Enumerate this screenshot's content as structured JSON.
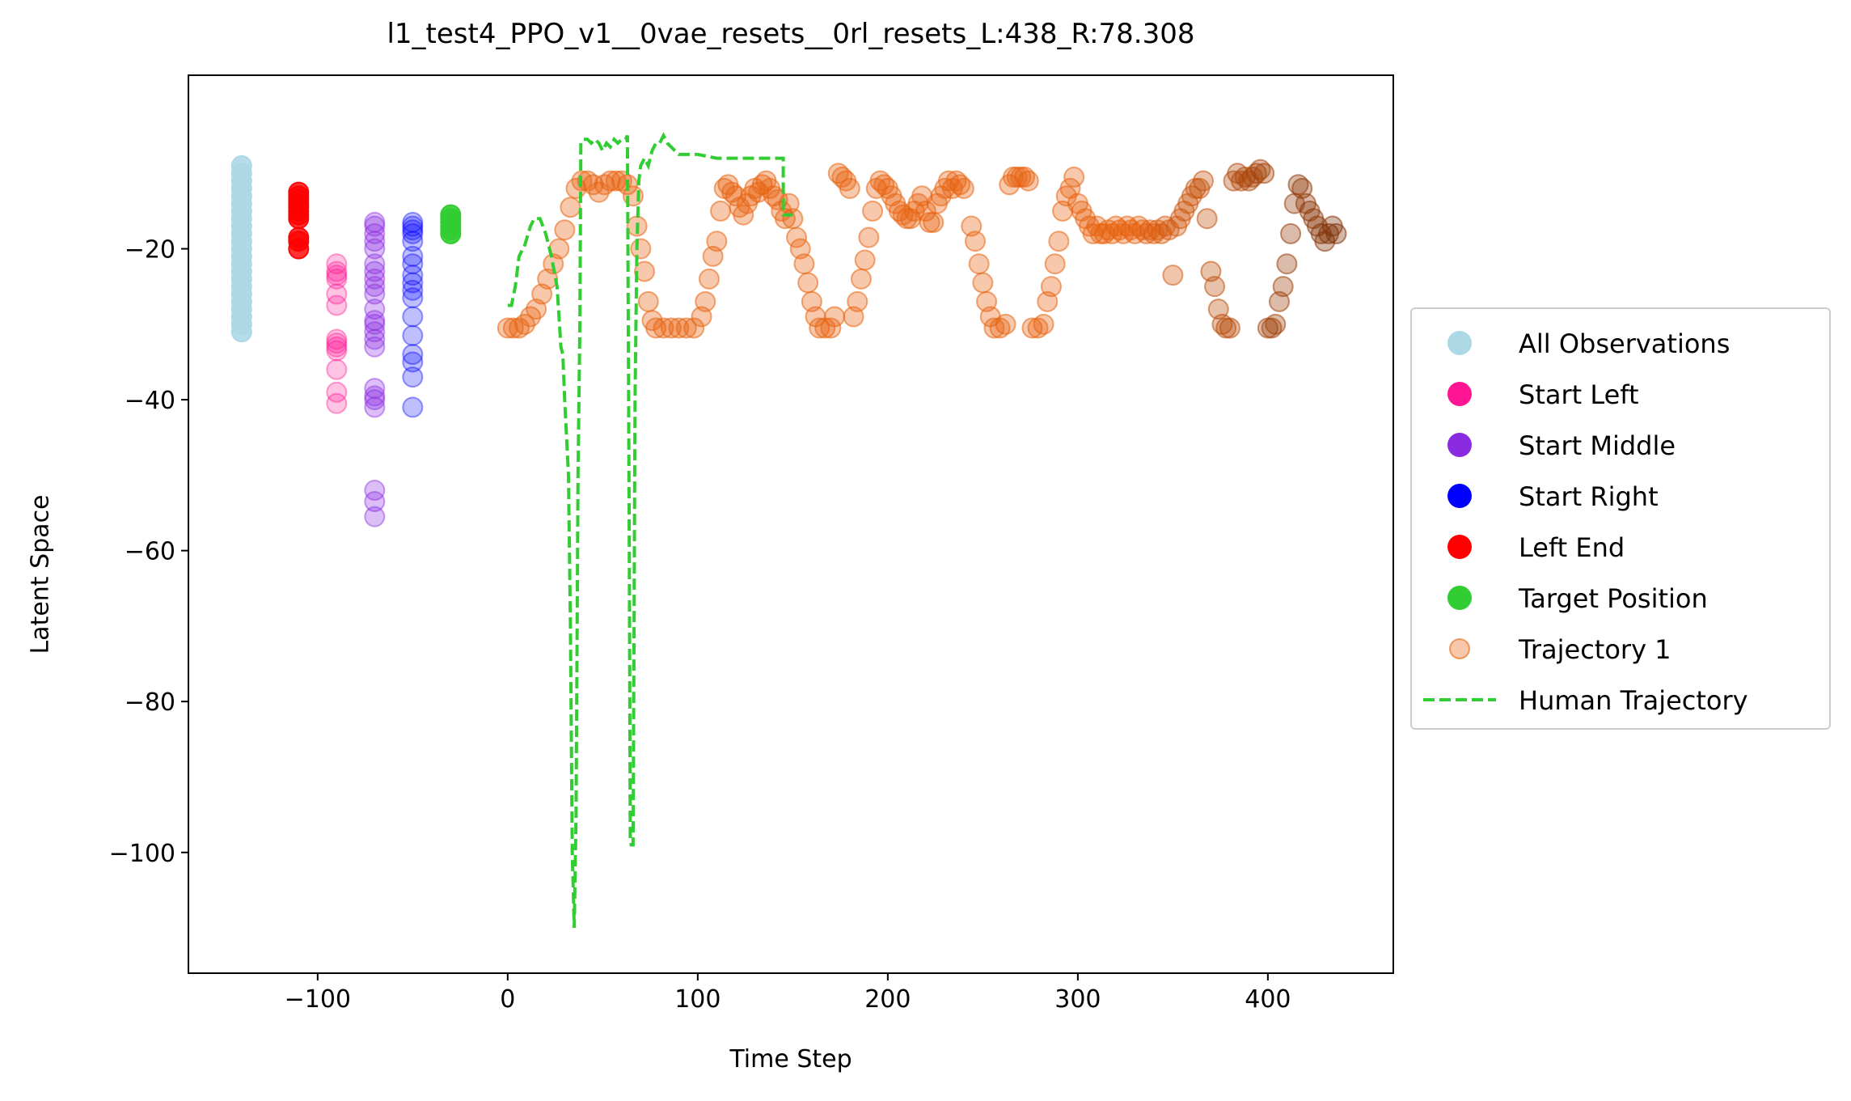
{
  "chart_data": {
    "type": "scatter",
    "title": "l1_test4_PPO_v1__0vae_resets__0rl_resets_L:438_R:78.308",
    "xlabel": "Time Step",
    "ylabel": "Latent Space",
    "xlim": [
      -168,
      466
    ],
    "ylim": [
      -116,
      3
    ],
    "xticks": [
      -100,
      0,
      100,
      200,
      300,
      400
    ],
    "yticks": [
      -20,
      -40,
      -60,
      -80,
      -100
    ],
    "xtick_labels": [
      "−100",
      "0",
      "100",
      "200",
      "300",
      "400"
    ],
    "ytick_labels": [
      "−20",
      "−40",
      "−60",
      "−80",
      "−100"
    ],
    "grid": false,
    "legend_position": "center-right-outside",
    "series": [
      {
        "name": "All Observations",
        "kind": "points",
        "color": "#add8e6",
        "alpha": 0.9,
        "x": -140,
        "y": [
          -9,
          -10,
          -11,
          -12,
          -13,
          -14,
          -15,
          -16,
          -17,
          -18,
          -19,
          -20,
          -21,
          -22,
          -23,
          -24,
          -25,
          -26,
          -27,
          -28,
          -29,
          -30,
          -31
        ]
      },
      {
        "name": "Start Left",
        "kind": "points",
        "color": "#ff1493",
        "alpha": 0.25,
        "x": -90,
        "y": [
          -22,
          -23,
          -23.5,
          -24,
          -26,
          -27.5,
          -32,
          -32.5,
          -33,
          -33.5,
          -36,
          -39,
          -40.5
        ]
      },
      {
        "name": "Start Middle",
        "kind": "points",
        "color": "#8a2be2",
        "alpha": 0.3,
        "x": -70,
        "y": [
          -16.5,
          -17,
          -18,
          -19,
          -20,
          -22,
          -23,
          -24,
          -25,
          -26,
          -28,
          -29.5,
          -30,
          -31,
          -32,
          -33,
          -38.5,
          -39.5,
          -40,
          -41,
          -52,
          -53.5,
          -55.5
        ]
      },
      {
        "name": "Start Right",
        "kind": "points",
        "color": "#0000ff",
        "alpha": 0.25,
        "x": -50,
        "y": [
          -16.5,
          -17,
          -17.5,
          -18,
          -19,
          -21,
          -22,
          -23.5,
          -24.5,
          -25.5,
          -26.5,
          -29,
          -31.5,
          -34,
          -35,
          -37,
          -41
        ]
      },
      {
        "name": "Left End",
        "kind": "points",
        "color": "#ff0000",
        "alpha": 0.8,
        "x": -110,
        "y": [
          -12.5,
          -13,
          -13.5,
          -14,
          -14.5,
          -15,
          -15.5,
          -16,
          -18.5,
          -19,
          -20
        ]
      },
      {
        "name": "Target Position",
        "kind": "points",
        "color": "#32cd32",
        "alpha": 0.9,
        "x": -30,
        "y": [
          -15.5,
          -16,
          -16.5,
          -17,
          -17.5,
          -18
        ]
      },
      {
        "name": "Trajectory 1",
        "kind": "trajectory",
        "alpha": 0.35,
        "color_start": "#e8620f",
        "color_end": "#7a2e05",
        "color_mid_t": 330,
        "points": [
          [
            0,
            -30.5
          ],
          [
            3,
            -30.5
          ],
          [
            6,
            -30.5
          ],
          [
            9,
            -30
          ],
          [
            12,
            -29
          ],
          [
            15,
            -28
          ],
          [
            18,
            -26
          ],
          [
            21,
            -24
          ],
          [
            24,
            -22
          ],
          [
            27,
            -20
          ],
          [
            30,
            -17.5
          ],
          [
            33,
            -14.5
          ],
          [
            36,
            -12
          ],
          [
            39,
            -11
          ],
          [
            42,
            -11
          ],
          [
            45,
            -11.5
          ],
          [
            48,
            -12.5
          ],
          [
            51,
            -11.5
          ],
          [
            54,
            -11
          ],
          [
            57,
            -11
          ],
          [
            60,
            -11
          ],
          [
            63,
            -11.5
          ],
          [
            66,
            -13
          ],
          [
            68,
            -17
          ],
          [
            70,
            -20
          ],
          [
            72,
            -23
          ],
          [
            74,
            -27
          ],
          [
            76,
            -29.5
          ],
          [
            78,
            -30.5
          ],
          [
            82,
            -30.5
          ],
          [
            86,
            -30.5
          ],
          [
            90,
            -30.5
          ],
          [
            94,
            -30.5
          ],
          [
            98,
            -30.5
          ],
          [
            102,
            -29
          ],
          [
            104,
            -27
          ],
          [
            106,
            -24
          ],
          [
            108,
            -21
          ],
          [
            110,
            -19
          ],
          [
            112,
            -15
          ],
          [
            114,
            -12
          ],
          [
            116,
            -11.5
          ],
          [
            118,
            -12.5
          ],
          [
            120,
            -13
          ],
          [
            122,
            -14.5
          ],
          [
            124,
            -15.5
          ],
          [
            126,
            -14
          ],
          [
            128,
            -13
          ],
          [
            130,
            -12
          ],
          [
            132,
            -12.5
          ],
          [
            134,
            -11.5
          ],
          [
            136,
            -11
          ],
          [
            138,
            -12
          ],
          [
            140,
            -13
          ],
          [
            142,
            -13.5
          ],
          [
            144,
            -15
          ],
          [
            146,
            -16
          ],
          [
            148,
            -14
          ],
          [
            150,
            -16
          ],
          [
            152,
            -18.5
          ],
          [
            154,
            -20
          ],
          [
            156,
            -22
          ],
          [
            158,
            -24.5
          ],
          [
            160,
            -27
          ],
          [
            162,
            -29
          ],
          [
            164,
            -30.5
          ],
          [
            167,
            -30.5
          ],
          [
            170,
            -30.5
          ],
          [
            172,
            -29
          ],
          [
            174,
            -10
          ],
          [
            176,
            -10.5
          ],
          [
            178,
            -11
          ],
          [
            180,
            -12
          ],
          [
            182,
            -29
          ],
          [
            184,
            -27
          ],
          [
            186,
            -24
          ],
          [
            188,
            -21.5
          ],
          [
            190,
            -18.5
          ],
          [
            192,
            -15
          ],
          [
            194,
            -12
          ],
          [
            196,
            -11
          ],
          [
            198,
            -11.5
          ],
          [
            200,
            -12
          ],
          [
            202,
            -13
          ],
          [
            204,
            -14
          ],
          [
            206,
            -15
          ],
          [
            208,
            -15.5
          ],
          [
            210,
            -16
          ],
          [
            212,
            -16
          ],
          [
            214,
            -15
          ],
          [
            216,
            -14
          ],
          [
            218,
            -13
          ],
          [
            220,
            -15
          ],
          [
            222,
            -16.5
          ],
          [
            224,
            -16.5
          ],
          [
            226,
            -14
          ],
          [
            228,
            -13
          ],
          [
            230,
            -12
          ],
          [
            232,
            -11
          ],
          [
            234,
            -12
          ],
          [
            236,
            -11
          ],
          [
            238,
            -11.5
          ],
          [
            240,
            -12
          ],
          [
            244,
            -17
          ],
          [
            246,
            -19
          ],
          [
            248,
            -22
          ],
          [
            250,
            -24.5
          ],
          [
            252,
            -27
          ],
          [
            254,
            -29
          ],
          [
            256,
            -30.5
          ],
          [
            259,
            -30.5
          ],
          [
            262,
            -30
          ],
          [
            264,
            -11.5
          ],
          [
            266,
            -10.5
          ],
          [
            268,
            -10.5
          ],
          [
            270,
            -10.5
          ],
          [
            272,
            -10.5
          ],
          [
            274,
            -11
          ],
          [
            276,
            -30.5
          ],
          [
            279,
            -30.5
          ],
          [
            282,
            -30
          ],
          [
            284,
            -27
          ],
          [
            286,
            -25
          ],
          [
            288,
            -22
          ],
          [
            290,
            -19
          ],
          [
            292,
            -15
          ],
          [
            294,
            -13
          ],
          [
            296,
            -12
          ],
          [
            298,
            -10.5
          ],
          [
            300,
            -14
          ],
          [
            302,
            -15
          ],
          [
            304,
            -16
          ],
          [
            306,
            -17
          ],
          [
            308,
            -18
          ],
          [
            310,
            -17
          ],
          [
            312,
            -18
          ],
          [
            314,
            -18
          ],
          [
            316,
            -17.5
          ],
          [
            318,
            -18
          ],
          [
            320,
            -17
          ],
          [
            322,
            -17.5
          ],
          [
            324,
            -18
          ],
          [
            326,
            -17
          ],
          [
            328,
            -17.5
          ],
          [
            330,
            -18
          ],
          [
            332,
            -17
          ],
          [
            334,
            -17.5
          ],
          [
            336,
            -18
          ],
          [
            338,
            -17.5
          ],
          [
            340,
            -18
          ],
          [
            342,
            -17.5
          ],
          [
            344,
            -18
          ],
          [
            346,
            -17
          ],
          [
            348,
            -17.5
          ],
          [
            350,
            -23.5
          ],
          [
            352,
            -17
          ],
          [
            354,
            -16
          ],
          [
            356,
            -15
          ],
          [
            358,
            -14
          ],
          [
            360,
            -13
          ],
          [
            362,
            -12
          ],
          [
            364,
            -12
          ],
          [
            366,
            -11
          ],
          [
            368,
            -16
          ],
          [
            370,
            -23
          ],
          [
            372,
            -25
          ],
          [
            374,
            -28
          ],
          [
            376,
            -30
          ],
          [
            378,
            -30.5
          ],
          [
            380,
            -30.5
          ],
          [
            382,
            -11
          ],
          [
            384,
            -10
          ],
          [
            386,
            -11
          ],
          [
            388,
            -10.5
          ],
          [
            390,
            -11
          ],
          [
            392,
            -10.5
          ],
          [
            394,
            -10
          ],
          [
            396,
            -9.5
          ],
          [
            398,
            -10
          ],
          [
            400,
            -30.5
          ],
          [
            402,
            -30.5
          ],
          [
            404,
            -30
          ],
          [
            406,
            -27
          ],
          [
            408,
            -25
          ],
          [
            410,
            -22
          ],
          [
            412,
            -18
          ],
          [
            414,
            -14
          ],
          [
            416,
            -11.5
          ],
          [
            418,
            -12
          ],
          [
            420,
            -14
          ],
          [
            422,
            -15
          ],
          [
            424,
            -16
          ],
          [
            426,
            -17
          ],
          [
            428,
            -18
          ],
          [
            430,
            -19
          ],
          [
            432,
            -18
          ],
          [
            434,
            -17
          ],
          [
            436,
            -18
          ]
        ]
      },
      {
        "name": "Human Trajectory",
        "kind": "line",
        "color": "#32cd32",
        "dash": "dashed",
        "points": [
          [
            0,
            -27.5
          ],
          [
            2,
            -27.5
          ],
          [
            4,
            -25
          ],
          [
            6,
            -21
          ],
          [
            9,
            -19.5
          ],
          [
            12,
            -17
          ],
          [
            14,
            -16
          ],
          [
            17,
            -16
          ],
          [
            20,
            -18
          ],
          [
            23,
            -21
          ],
          [
            26,
            -25
          ],
          [
            27,
            -29
          ],
          [
            28,
            -33
          ],
          [
            29,
            -34
          ],
          [
            30,
            -40
          ],
          [
            32,
            -50
          ],
          [
            33,
            -70
          ],
          [
            34,
            -100
          ],
          [
            35,
            -110
          ],
          [
            36,
            -95
          ],
          [
            37,
            -50
          ],
          [
            38,
            -30
          ],
          [
            38.5,
            -6
          ],
          [
            40,
            -5.5
          ],
          [
            42,
            -5.5
          ],
          [
            44,
            -6
          ],
          [
            46,
            -5.5
          ],
          [
            48,
            -6
          ],
          [
            50,
            -7
          ],
          [
            52,
            -6
          ],
          [
            54,
            -6.5
          ],
          [
            56,
            -5.5
          ],
          [
            58,
            -6
          ],
          [
            60,
            -5.5
          ],
          [
            62,
            -5.5
          ],
          [
            63,
            -5
          ],
          [
            64,
            -60
          ],
          [
            64.5,
            -98
          ],
          [
            65,
            -99
          ],
          [
            66,
            -99
          ],
          [
            66.5,
            -70
          ],
          [
            67,
            -40
          ],
          [
            68,
            -20
          ],
          [
            69,
            -11
          ],
          [
            70,
            -9
          ],
          [
            72,
            -8
          ],
          [
            74,
            -9
          ],
          [
            76,
            -7
          ],
          [
            78,
            -6
          ],
          [
            80,
            -6
          ],
          [
            82,
            -5
          ],
          [
            84,
            -6
          ],
          [
            86,
            -6.5
          ],
          [
            88,
            -7
          ],
          [
            90,
            -7.5
          ],
          [
            95,
            -7.5
          ],
          [
            100,
            -7.5
          ],
          [
            110,
            -8
          ],
          [
            120,
            -8
          ],
          [
            130,
            -8
          ],
          [
            140,
            -8
          ],
          [
            145,
            -8
          ],
          [
            145,
            -15.5
          ],
          [
            150,
            -15.5
          ]
        ]
      }
    ]
  }
}
